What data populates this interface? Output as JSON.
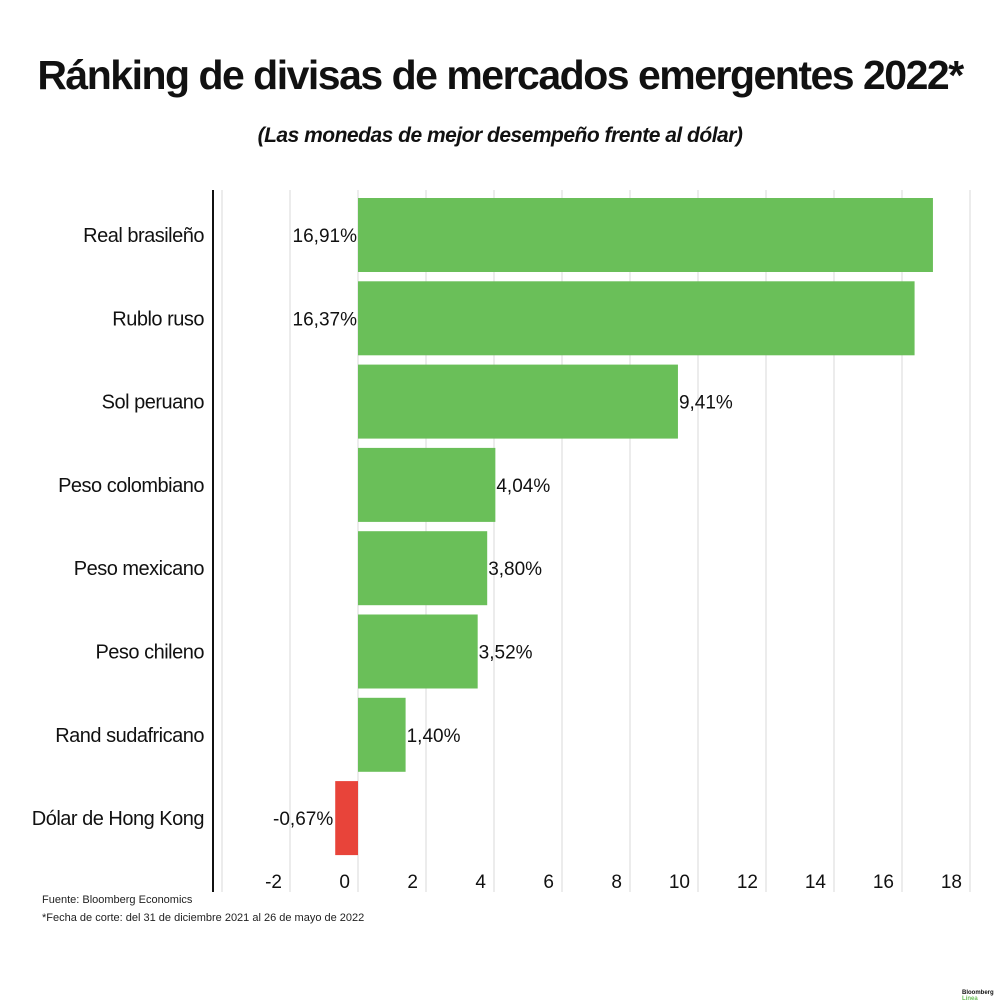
{
  "chart_data": {
    "type": "bar",
    "orientation": "horizontal",
    "title": "Ránking de divisas de mercados emergentes 2022*",
    "subtitle": "(Las monedas de mejor desempeño frente al dólar)",
    "categories": [
      "Real brasileño",
      "Rublo ruso",
      "Sol peruano",
      "Peso colombiano",
      "Peso mexicano",
      "Peso chileno",
      "Rand sudafricano",
      "Dólar de Hong Kong"
    ],
    "values": [
      16.91,
      16.37,
      9.41,
      4.04,
      3.8,
      3.52,
      1.4,
      -0.67
    ],
    "data_labels": [
      "16,91%",
      "16,37%",
      "9,41%",
      "4,04%",
      "3,80%",
      "3,52%",
      "1,40%",
      "-0,67%"
    ],
    "xlim": [
      -4,
      18
    ],
    "xticks": [
      -2,
      0,
      2,
      4,
      6,
      8,
      10,
      12,
      14,
      16,
      18
    ],
    "grid": true,
    "colors": {
      "positive": "#6abf59",
      "negative": "#e8443a"
    }
  },
  "notes": {
    "source": "Fuente: Bloomberg Economics",
    "cutoff": "*Fecha de corte: del 31 de diciembre 2021 al 26 de mayo de 2022"
  },
  "logo": {
    "name": "Bloomberg",
    "sub": "Línea"
  }
}
